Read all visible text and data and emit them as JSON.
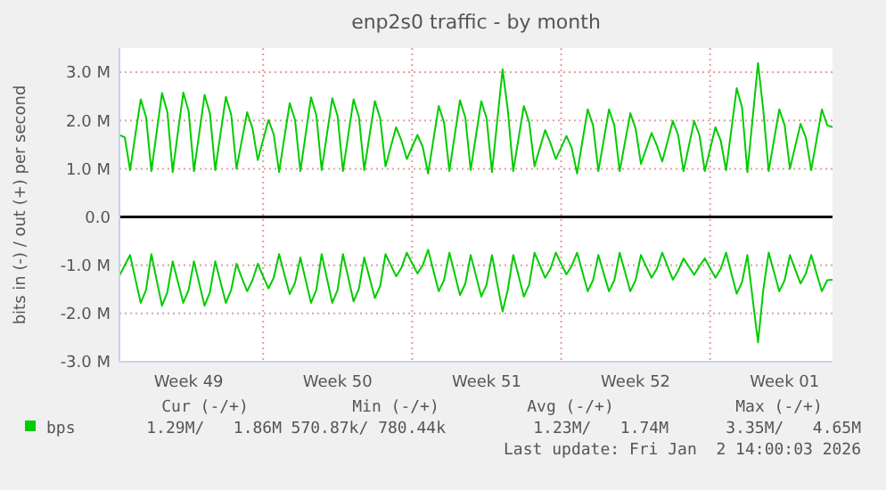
{
  "chart_data": {
    "type": "line",
    "title": "enp2s0 traffic - by month",
    "ylabel": "bits in (-) / out (+) per second",
    "categories": [
      null,
      null,
      null,
      null,
      null,
      null,
      null,
      null,
      null,
      null,
      null,
      null,
      null,
      "Week 49",
      null,
      null,
      null,
      null,
      null,
      null,
      null,
      null,
      null,
      null,
      null,
      null,
      null,
      null,
      null,
      null,
      null,
      null,
      null,
      null,
      null,
      null,
      null,
      null,
      null,
      null,
      null,
      "Week 50",
      null,
      null,
      null,
      null,
      null,
      null,
      null,
      null,
      null,
      null,
      null,
      null,
      null,
      null,
      null,
      null,
      null,
      null,
      null,
      null,
      null,
      null,
      null,
      null,
      null,
      null,
      null,
      "Week 51",
      null,
      null,
      null,
      null,
      null,
      null,
      null,
      null,
      null,
      null,
      null,
      null,
      null,
      null,
      null,
      null,
      null,
      null,
      null,
      null,
      null,
      null,
      null,
      null,
      null,
      null,
      null,
      "Week 52",
      null,
      null,
      null,
      null,
      null,
      null,
      null,
      null,
      null,
      null,
      null,
      null,
      null,
      null,
      null,
      null,
      null,
      null,
      null,
      null,
      null,
      null,
      null,
      null,
      null,
      null,
      null,
      "Week 01",
      null,
      null,
      null,
      null,
      null,
      null,
      null,
      null,
      null
    ],
    "series": [
      {
        "name": "bps",
        "color": "#00cc00",
        "values": [
          1.7,
          1.65,
          0.97,
          1.71,
          2.44,
          2.07,
          0.95,
          1.76,
          2.57,
          2.18,
          0.93,
          1.76,
          2.58,
          2.19,
          0.95,
          1.74,
          2.53,
          2.15,
          0.97,
          1.73,
          2.49,
          2.12,
          1.0,
          1.59,
          2.17,
          1.84,
          1.18,
          1.6,
          2.01,
          1.71,
          0.93,
          1.65,
          2.36,
          2.01,
          0.95,
          1.72,
          2.48,
          2.11,
          0.97,
          1.72,
          2.46,
          2.09,
          0.95,
          1.7,
          2.44,
          2.07,
          0.97,
          1.69,
          2.4,
          2.04,
          1.05,
          1.46,
          1.86,
          1.58,
          1.2,
          1.45,
          1.7,
          1.45,
          0.9,
          1.6,
          2.3,
          1.96,
          0.95,
          1.69,
          2.42,
          2.06,
          0.97,
          1.69,
          2.4,
          2.04,
          0.93,
          2.0,
          3.06,
          2.2,
          0.95,
          1.63,
          2.3,
          1.96,
          1.05,
          1.43,
          1.8,
          1.53,
          1.2,
          1.44,
          1.68,
          1.43,
          0.9,
          1.57,
          2.23,
          1.9,
          0.95,
          1.59,
          2.23,
          1.9,
          0.95,
          1.55,
          2.15,
          1.83,
          1.1,
          1.42,
          1.74,
          1.48,
          1.15,
          1.57,
          1.99,
          1.69,
          0.95,
          1.47,
          1.99,
          1.69,
          0.95,
          1.41,
          1.86,
          1.58,
          0.97,
          1.82,
          2.67,
          2.27,
          0.93,
          2.06,
          3.19,
          2.2,
          0.95,
          1.59,
          2.23,
          1.9,
          1.0,
          1.47,
          1.93,
          1.64,
          0.97,
          1.6,
          2.23,
          1.9,
          1.86
        ]
      },
      {
        "color": "#00cc00",
        "values": [
          -1.22,
          -1.0,
          -0.79,
          -1.29,
          -1.78,
          -1.51,
          -0.77,
          -1.31,
          -1.84,
          -1.56,
          -0.92,
          -1.35,
          -1.78,
          -1.51,
          -0.92,
          -1.38,
          -1.84,
          -1.56,
          -0.92,
          -1.35,
          -1.78,
          -1.51,
          -0.97,
          -1.26,
          -1.54,
          -1.31,
          -0.97,
          -1.23,
          -1.48,
          -1.26,
          -0.77,
          -1.19,
          -1.6,
          -1.36,
          -0.84,
          -1.31,
          -1.78,
          -1.51,
          -0.77,
          -1.28,
          -1.78,
          -1.51,
          -0.77,
          -1.26,
          -1.75,
          -1.49,
          -0.84,
          -1.26,
          -1.68,
          -1.43,
          -0.77,
          -1.0,
          -1.23,
          -1.05,
          -0.74,
          -0.96,
          -1.17,
          -1.0,
          -0.68,
          -1.11,
          -1.54,
          -1.31,
          -0.74,
          -1.18,
          -1.62,
          -1.38,
          -0.79,
          -1.22,
          -1.65,
          -1.4,
          -0.79,
          -1.38,
          -1.96,
          -1.5,
          -0.79,
          -1.22,
          -1.65,
          -1.4,
          -0.74,
          -1.0,
          -1.26,
          -1.07,
          -0.74,
          -0.97,
          -1.19,
          -1.01,
          -0.74,
          -1.14,
          -1.54,
          -1.31,
          -0.79,
          -1.17,
          -1.54,
          -1.31,
          -0.74,
          -1.14,
          -1.54,
          -1.31,
          -0.79,
          -1.03,
          -1.26,
          -1.07,
          -0.74,
          -1.02,
          -1.3,
          -1.11,
          -0.86,
          -1.03,
          -1.2,
          -1.02,
          -0.86,
          -1.06,
          -1.26,
          -1.07,
          -0.74,
          -1.17,
          -1.59,
          -1.35,
          -0.79,
          -1.7,
          -2.6,
          -1.5,
          -0.74,
          -1.14,
          -1.54,
          -1.31,
          -0.79,
          -1.09,
          -1.38,
          -1.17,
          -0.79,
          -1.17,
          -1.54,
          -1.31,
          -1.3
        ]
      }
    ],
    "ylim": [
      -3,
      3.5
    ],
    "yticks": [
      {
        "value": -3,
        "label": "-3.0 M"
      },
      {
        "value": -2,
        "label": "-2.0 M"
      },
      {
        "value": -1,
        "label": "-1.0 M"
      },
      {
        "value": 0,
        "label": "0.0"
      },
      {
        "value": 1,
        "label": "1.0 M"
      },
      {
        "value": 2,
        "label": "2.0 M"
      },
      {
        "value": 3,
        "label": "3.0 M"
      }
    ],
    "ref_lines": [
      {
        "axis": "y",
        "value": 0,
        "color": "#000000"
      }
    ],
    "grid": true,
    "legend": "bottom left",
    "annotations": [
      "Cur (-/+)",
      "Min (-/+)",
      "Avg (-/+)",
      "Max (-/+)",
      "1.29M/   1.86M",
      "570.87k/ 780.44k",
      "1.23M/   1.74M",
      "3.35M/   4.65M",
      "Last update: Fri Jan  2 14:00:03 2026"
    ]
  }
}
